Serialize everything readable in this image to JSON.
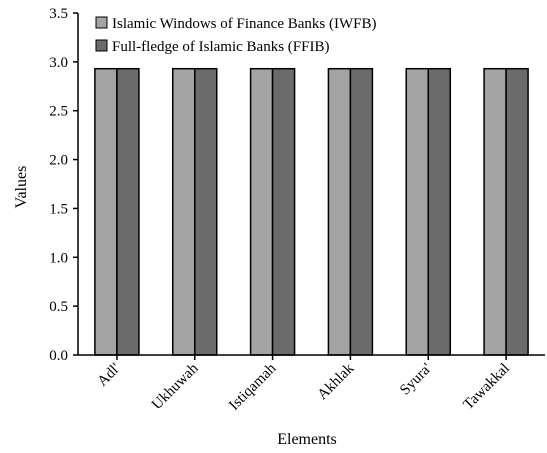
{
  "chart_data": {
    "type": "bar",
    "xlabel": "Elements",
    "ylabel": "Values",
    "ylim": [
      0,
      3.5
    ],
    "yticks": [
      "0.0",
      "0.5",
      "1.0",
      "1.5",
      "2.0",
      "2.5",
      "3.0",
      "3.5"
    ],
    "categories": [
      "Adl'",
      "Ukhuwah",
      "Istiqamah",
      "Akhlak",
      "Syura'",
      "Tawakkal"
    ],
    "series": [
      {
        "name": "Islamic Windows of Finance Banks (IWFB)",
        "values": [
          2.93,
          2.93,
          2.93,
          2.93,
          2.93,
          2.93
        ],
        "color": "#a3a3a3"
      },
      {
        "name": "Full-fledge of Islamic Banks (FFIB)",
        "values": [
          2.93,
          2.93,
          2.93,
          2.93,
          2.93,
          2.93
        ],
        "color": "#6b6b6b"
      }
    ],
    "grid": false,
    "legend": "top-left"
  }
}
